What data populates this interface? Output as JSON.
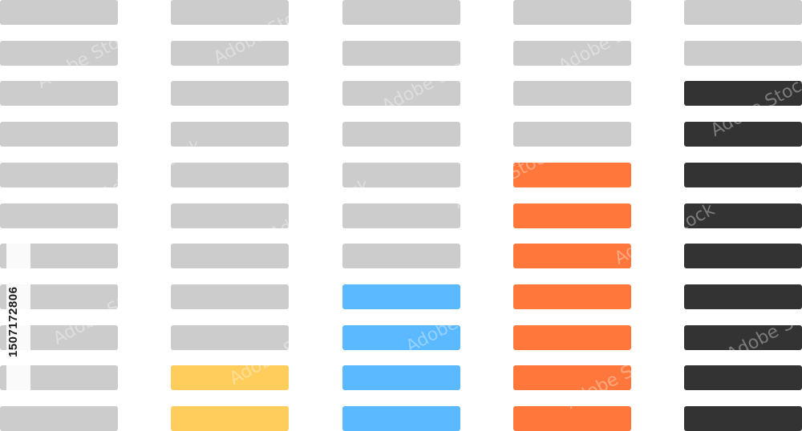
{
  "meters": [
    {
      "id": "col-1",
      "level": 0,
      "total": 11,
      "active_color": "#cccccc"
    },
    {
      "id": "col-2",
      "level": 2,
      "total": 11,
      "active_color": "#ffcd5b"
    },
    {
      "id": "col-3",
      "level": 4,
      "total": 11,
      "active_color": "#5bb9ff"
    },
    {
      "id": "col-4",
      "level": 7,
      "total": 11,
      "active_color": "#ff773b"
    },
    {
      "id": "col-5",
      "level": 9,
      "total": 11,
      "active_color": "#333333"
    }
  ],
  "inactive_color": "#cccccc",
  "stock_id": "1507172806",
  "watermark": "Adobe Stock"
}
